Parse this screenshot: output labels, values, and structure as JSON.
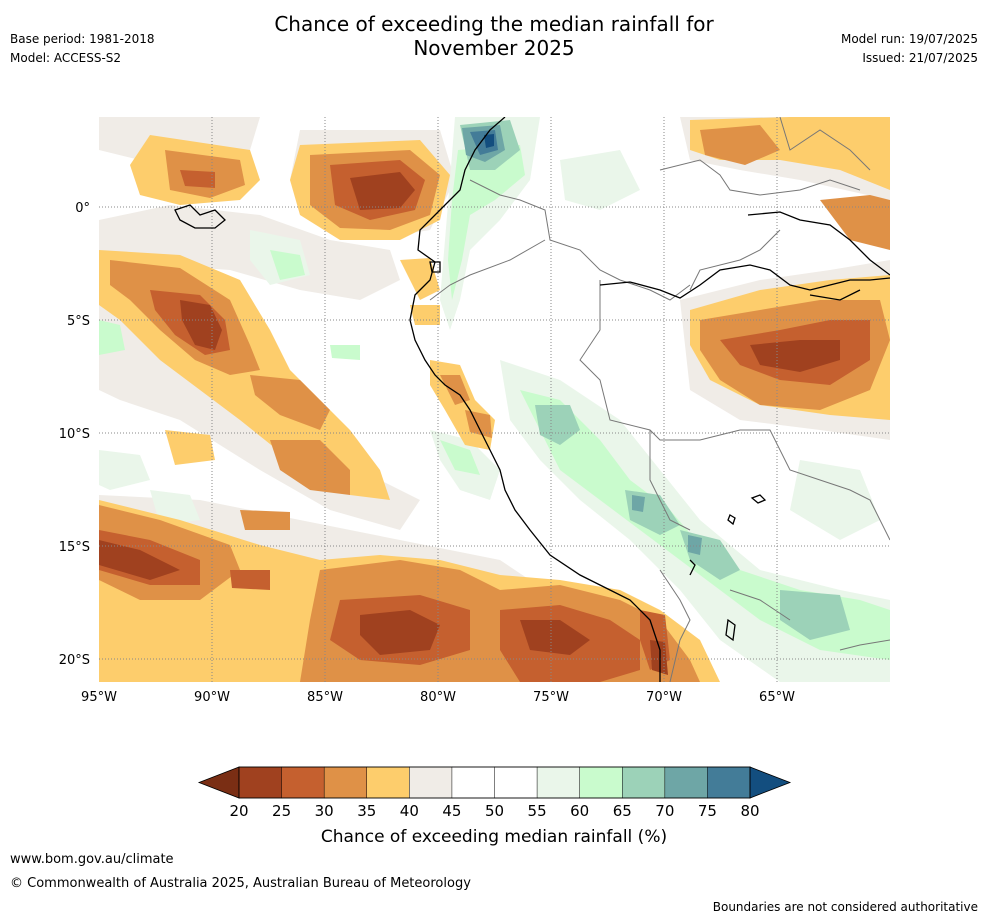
{
  "header": {
    "title_line1": "Chance of exceeding the median rainfall for",
    "title_line2": "November 2025",
    "base_period": "Base period: 1981-2018",
    "model": "Model: ACCESS-S2",
    "model_run": "Model run: 19/07/2025",
    "issued": "Issued: 21/07/2025"
  },
  "map": {
    "lon_labels": [
      "95°W",
      "90°W",
      "85°W",
      "80°W",
      "75°W",
      "70°W",
      "65°W"
    ],
    "lat_labels": [
      "0°",
      "5°S",
      "10°S",
      "15°S",
      "20°S"
    ],
    "colors": {
      "20": "#a0411f",
      "25": "#c5602f",
      "30": "#df9147",
      "35": "#fdcd6c",
      "40": "#f0ece7",
      "45": "#ffffff",
      "55": "#eaf6ea",
      "60": "#c9fbcd",
      "65": "#9cd2b8",
      "70": "#6ea6a6",
      "75": "#437c98",
      "80": "#134e7f"
    }
  },
  "colorbar": {
    "labels": [
      "20",
      "25",
      "30",
      "35",
      "40",
      "45",
      "50",
      "55",
      "60",
      "65",
      "70",
      "75",
      "80"
    ],
    "colors": [
      "#a0411f",
      "#c5602f",
      "#df9147",
      "#fdcd6c",
      "#f0ece7",
      "#ffffff",
      "#ffffff",
      "#eaf6ea",
      "#c9fbcd",
      "#9cd2b8",
      "#6ea6a6",
      "#437c98"
    ],
    "low_color": "#7a2e14",
    "high_color": "#134e7f",
    "title": "Chance of exceeding median rainfall (%)"
  },
  "footer": {
    "website": "www.bom.gov.au/climate",
    "copyright": "© Commonwealth of Australia 2025, Australian Bureau of Meteorology",
    "disclaimer": "Boundaries are not considered authoritative"
  }
}
